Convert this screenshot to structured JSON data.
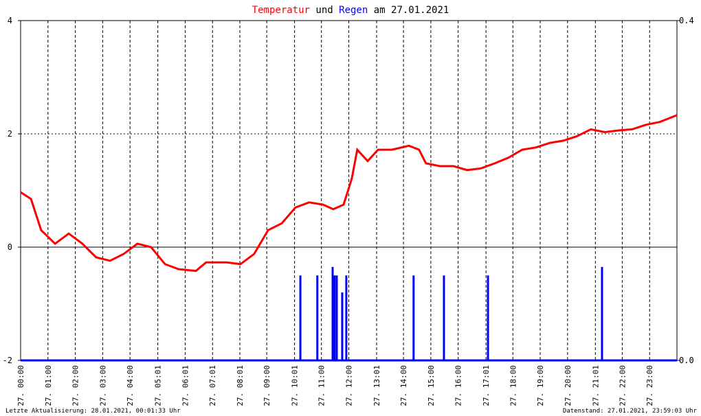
{
  "chart_data": {
    "type": "line",
    "title_parts": [
      "Temperatur",
      "und",
      "Regen",
      "am 27.01.2021"
    ],
    "footer_left": "Letzte Aktualisierung: 28.01.2021, 00:01:33 Uhr",
    "footer_right": "Datenstand: 27.01.2021, 23:59:03 Uhr",
    "xlim": [
      0,
      24
    ],
    "xticks": [
      {
        "value": 0,
        "label": "27. 00:00"
      },
      {
        "value": 1,
        "label": "27. 01:00"
      },
      {
        "value": 2,
        "label": "27. 02:00"
      },
      {
        "value": 3,
        "label": "27. 03:00"
      },
      {
        "value": 4,
        "label": "27. 04:00"
      },
      {
        "value": 5.017,
        "label": "27. 05:01"
      },
      {
        "value": 6.017,
        "label": "27. 06:01"
      },
      {
        "value": 7.017,
        "label": "27. 07:01"
      },
      {
        "value": 8.017,
        "label": "27. 08:01"
      },
      {
        "value": 9,
        "label": "27. 09:00"
      },
      {
        "value": 10.017,
        "label": "27. 10:01"
      },
      {
        "value": 11,
        "label": "27. 11:00"
      },
      {
        "value": 12,
        "label": "27. 12:00"
      },
      {
        "value": 13.017,
        "label": "27. 13:01"
      },
      {
        "value": 14,
        "label": "27. 14:00"
      },
      {
        "value": 15,
        "label": "27. 15:00"
      },
      {
        "value": 16,
        "label": "27. 16:00"
      },
      {
        "value": 17.017,
        "label": "27. 17:01"
      },
      {
        "value": 18,
        "label": "27. 18:00"
      },
      {
        "value": 19,
        "label": "27. 19:00"
      },
      {
        "value": 20,
        "label": "27. 20:00"
      },
      {
        "value": 21.017,
        "label": "27. 21:01"
      },
      {
        "value": 22,
        "label": "27. 22:00"
      },
      {
        "value": 23,
        "label": "27. 23:00"
      }
    ],
    "ylim": [
      -2,
      4
    ],
    "yticks": [
      -2,
      0,
      2,
      4
    ],
    "y2lim": [
      0,
      0.4
    ],
    "y2ticks": [
      {
        "value": 0,
        "label": "0.0"
      },
      0.4
    ],
    "grid": true,
    "series": [
      {
        "name": "Temperatur",
        "color": "#ff0000",
        "x": [
          0,
          0.38,
          0.75,
          1.26,
          1.76,
          2.26,
          2.76,
          3.27,
          3.77,
          4.27,
          4.77,
          5.28,
          5.78,
          6.41,
          6.78,
          7.54,
          8.04,
          8.54,
          9.05,
          9.55,
          10.05,
          10.55,
          11.06,
          11.43,
          11.81,
          12.11,
          12.31,
          12.69,
          13.07,
          13.57,
          14.2,
          14.57,
          14.82,
          15.33,
          15.83,
          16.33,
          16.83,
          17.34,
          17.84,
          18.34,
          18.84,
          19.35,
          19.85,
          20.35,
          20.85,
          21.36,
          21.86,
          22.36,
          22.86,
          23.37,
          24
        ],
        "values": [
          0.97,
          0.85,
          0.3,
          0.06,
          0.24,
          0.06,
          -0.18,
          -0.24,
          -0.12,
          0.06,
          0,
          -0.3,
          -0.39,
          -0.42,
          -0.27,
          -0.27,
          -0.3,
          -0.12,
          0.3,
          0.42,
          0.7,
          0.79,
          0.75,
          0.67,
          0.75,
          1.21,
          1.72,
          1.52,
          1.72,
          1.72,
          1.79,
          1.72,
          1.48,
          1.43,
          1.43,
          1.36,
          1.39,
          1.48,
          1.58,
          1.72,
          1.76,
          1.84,
          1.88,
          1.96,
          2.08,
          2.03,
          2.06,
          2.08,
          2.16,
          2.21,
          2.33
        ]
      },
      {
        "name": "Regen",
        "color": "#0000ff",
        "axis": "y2",
        "x": [
          10.23,
          10.85,
          11.41,
          11.48,
          11.56,
          11.76,
          11.91,
          14.37,
          15.48,
          17.09,
          21.26
        ],
        "values": [
          0.1,
          0.1,
          0.11,
          0.1,
          0.1,
          0.08,
          0.1,
          0.1,
          0.1,
          0.1,
          0.11
        ]
      }
    ]
  }
}
